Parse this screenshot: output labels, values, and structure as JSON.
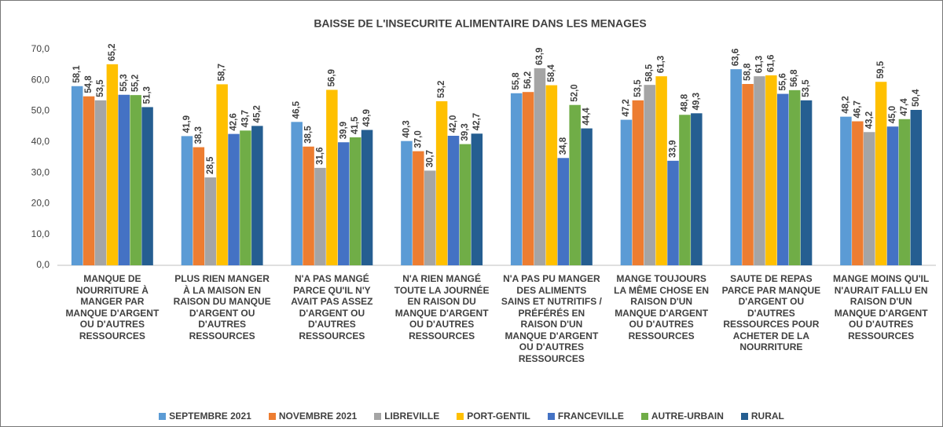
{
  "chart_data": {
    "type": "bar",
    "title": "BAISSE DE L'INSECURITE ALIMENTAIRE DANS LES MENAGES",
    "categories": [
      "MANQUE DE NOURRITURE À MANGER PAR MANQUE D'ARGENT OU D'AUTRES RESSOURCES",
      "PLUS RIEN MANGER À LA MAISON EN RAISON DU MANQUE D'ARGENT OU D'AUTRES RESSOURCES",
      "N'A PAS MANGÉ PARCE QU'IL N'Y AVAIT PAS ASSEZ D'ARGENT OU D'AUTRES RESSOURCES",
      "N'A RIEN MANGÉ TOUTE LA JOURNÉE EN RAISON DU MANQUE D'ARGENT OU D'AUTRES RESSOURCES",
      "N'A PAS PU MANGER DES ALIMENTS SAINS ET NUTRITIFS / PRÉFÉRÉS EN RAISON D'UN MANQUE D'ARGENT OU D'AUTRES RESSOURCES",
      "MANGE TOUJOURS LA MÊME CHOSE EN RAISON D'UN MANQUE D'ARGENT OU D'AUTRES RESSOURCES",
      "SAUTE DE REPAS PARCE PAR MANQUE D'ARGENT OU D'AUTRES RESSOURCES POUR ACHETER DE LA NOURRITURE",
      "MANGE MOINS QU'IL N'AURAIT FALLU EN RAISON D'UN MANQUE D'ARGENT OU D'AUTRES RESSOURCES"
    ],
    "series": [
      {
        "name": "SEPTEMBRE 2021",
        "color": "#5b9bd5",
        "values": [
          58.1,
          41.9,
          46.5,
          40.3,
          55.8,
          47.2,
          63.6,
          48.2
        ],
        "value_labels": [
          "58,1",
          "41,9",
          "46,5",
          "40,3",
          "55,8",
          "47,2",
          "63,6",
          "48,2"
        ]
      },
      {
        "name": "NOVEMBRE 2021",
        "color": "#ed7d31",
        "values": [
          54.8,
          38.3,
          38.5,
          37.0,
          56.2,
          53.5,
          58.8,
          46.7
        ],
        "value_labels": [
          "54,8",
          "38,3",
          "38,5",
          "37,0",
          "56,2",
          "53,5",
          "58,8",
          "46,7"
        ]
      },
      {
        "name": "LIBREVILLE",
        "color": "#a5a5a5",
        "values": [
          53.5,
          28.5,
          31.6,
          30.7,
          63.9,
          58.5,
          61.3,
          43.2
        ],
        "value_labels": [
          "53,5",
          "28,5",
          "31,6",
          "30,7",
          "63,9",
          "58,5",
          "61,3",
          "43,2"
        ]
      },
      {
        "name": "PORT-GENTIL",
        "color": "#ffc000",
        "values": [
          65.2,
          58.7,
          56.9,
          53.2,
          58.4,
          61.3,
          61.6,
          59.5
        ],
        "value_labels": [
          "65,2",
          "58,7",
          "56,9",
          "53,2",
          "58,4",
          "61,3",
          "61,6",
          "59,5"
        ]
      },
      {
        "name": "FRANCEVILLE",
        "color": "#4472c4",
        "values": [
          55.3,
          42.6,
          39.9,
          42.0,
          34.8,
          33.9,
          55.6,
          45.0
        ],
        "value_labels": [
          "55,3",
          "42,6",
          "39,9",
          "42,0",
          "34,8",
          "33,9",
          "55,6",
          "45,0"
        ]
      },
      {
        "name": "AUTRE-URBAIN",
        "color": "#70ad47",
        "values": [
          55.2,
          43.7,
          41.5,
          39.3,
          52.0,
          48.8,
          56.8,
          47.4
        ],
        "value_labels": [
          "55,2",
          "43,7",
          "41,5",
          "39,3",
          "52,0",
          "48,8",
          "56,8",
          "47,4"
        ]
      },
      {
        "name": "RURAL",
        "color": "#255e91",
        "values": [
          51.3,
          45.2,
          43.9,
          42.7,
          44.4,
          49.3,
          53.5,
          50.4
        ],
        "value_labels": [
          "51,3",
          "45,2",
          "43,9",
          "42,7",
          "44,4",
          "49,3",
          "53,5",
          "50,4"
        ]
      }
    ],
    "ylim": [
      0,
      70
    ],
    "yticks": [
      {
        "value": 0,
        "label": "0,0"
      },
      {
        "value": 10,
        "label": "10,0"
      },
      {
        "value": 20,
        "label": "20,0"
      },
      {
        "value": 30,
        "label": "30,0"
      },
      {
        "value": 40,
        "label": "40,0"
      },
      {
        "value": 50,
        "label": "50,0"
      },
      {
        "value": 60,
        "label": "60,0"
      },
      {
        "value": 70,
        "label": "70,0"
      }
    ],
    "grid": false,
    "legend": "bottom"
  }
}
